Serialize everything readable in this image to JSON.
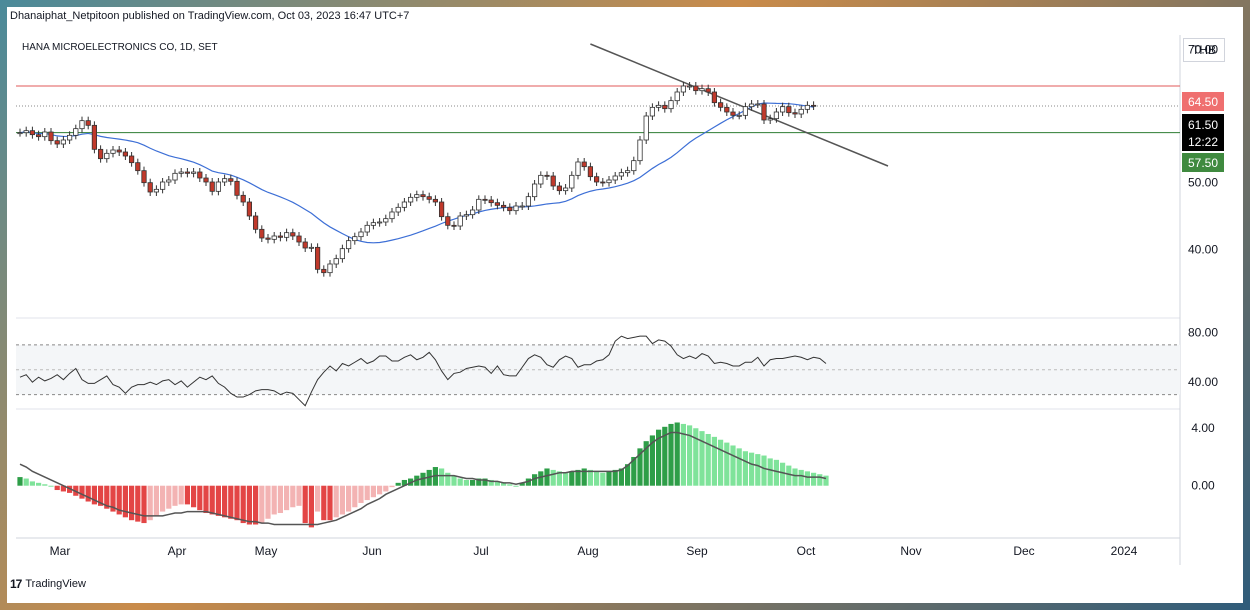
{
  "header": {
    "published": "Dhanaiphat_Netpitoon published on TradingView.com, Oct 03, 2023 16:47 UTC+7",
    "symbol": "HANA MICROELECTRONICS CO, 1D, SET"
  },
  "currency": "THB",
  "footer": {
    "brand": "TradingView"
  },
  "colors": {
    "up_candle": "#ffffff",
    "down_candle": "#c0392b",
    "ma_line": "#3d6fd6",
    "resistance": "#e05a5a",
    "support": "#2e7d32",
    "trendline": "#555555",
    "rsi_line": "#333333",
    "hist_pos_strong": "#2e9e48",
    "hist_pos_weak": "#7fe39a",
    "hist_neg_strong": "#e34545",
    "hist_neg_weak": "#f3b3b3",
    "signal_line": "#555555"
  },
  "price_labels": {
    "resistance": "64.50",
    "last": "61.50",
    "countdown": "12:22",
    "support": "57.50"
  },
  "chart_data": [
    {
      "type": "candlestick",
      "title": "HANA MICROELECTRONICS CO, 1D, SET",
      "y_ticks": [
        "70.00",
        "50.00",
        "40.00"
      ],
      "ylim": [
        30,
        72
      ],
      "x_ticks": [
        "Mar",
        "Apr",
        "May",
        "Jun",
        "Jul",
        "Aug",
        "Sep",
        "Oct",
        "Nov",
        "Dec",
        "2024"
      ],
      "horizontal_levels": [
        64.5,
        57.5
      ],
      "close": [
        57.5,
        57.8,
        57.2,
        56.9,
        57.6,
        56.3,
        55.8,
        56.4,
        57.1,
        58.1,
        59.3,
        58.6,
        55.0,
        53.6,
        54.4,
        54.9,
        54.6,
        54.0,
        53.0,
        51.8,
        50.0,
        48.6,
        49.0,
        50.1,
        50.4,
        51.4,
        51.6,
        51.4,
        51.6,
        50.7,
        50.1,
        48.7,
        50.1,
        50.6,
        50.2,
        48.1,
        47.1,
        45.0,
        43.0,
        41.7,
        41.5,
        42.0,
        41.8,
        42.5,
        42.0,
        41.1,
        40.2,
        40.3,
        37.0,
        36.5,
        37.8,
        38.6,
        40.1,
        41.3,
        41.9,
        42.6,
        43.6,
        44.0,
        44.1,
        44.6,
        45.6,
        46.3,
        47.1,
        47.8,
        48.2,
        47.9,
        47.5,
        47.1,
        44.9,
        43.6,
        43.5,
        45.0,
        45.2,
        45.9,
        47.5,
        47.4,
        47.0,
        46.6,
        46.3,
        45.8,
        46.5,
        46.5,
        47.9,
        49.8,
        51.1,
        51.0,
        49.5,
        48.8,
        49.2,
        51.1,
        53.1,
        52.4,
        50.9,
        50.1,
        50.0,
        50.4,
        51.0,
        51.5,
        51.8,
        53.3,
        56.4,
        60.0,
        61.3,
        61.6,
        61.1,
        62.3,
        63.6,
        64.5,
        64.5,
        63.8,
        64.1,
        63.6,
        62.0,
        61.3,
        60.6,
        60.1,
        60.1,
        61.4,
        61.8,
        61.8,
        59.4,
        59.6,
        60.6,
        61.4,
        60.5,
        60.3,
        61.0,
        61.6,
        61.5
      ]
    },
    {
      "type": "line",
      "title": "",
      "y_ticks": [
        "80.00",
        "40.00"
      ],
      "ylim": [
        20,
        90
      ],
      "bands": [
        70,
        30
      ],
      "values": [
        44,
        46,
        40,
        44,
        41,
        43,
        46,
        42,
        47,
        51,
        42,
        39,
        39,
        42,
        45,
        38,
        36,
        31,
        36,
        38,
        38,
        40,
        38,
        41,
        42,
        38,
        41,
        36,
        40,
        44,
        42,
        45,
        39,
        36,
        31,
        28,
        28,
        30,
        33,
        34,
        34,
        33,
        30,
        32,
        31,
        26,
        21,
        32,
        42,
        48,
        53,
        49,
        55,
        53,
        56,
        59,
        55,
        57,
        61,
        61,
        57,
        57,
        60,
        62,
        58,
        60,
        64,
        58,
        49,
        42,
        47,
        48,
        51,
        52,
        53,
        52,
        47,
        53,
        46,
        45,
        45,
        52,
        59,
        62,
        60,
        54,
        52,
        58,
        61,
        59,
        52,
        54,
        54,
        57,
        58,
        62,
        73,
        77,
        75,
        76,
        77,
        77,
        71,
        74,
        73,
        69,
        62,
        59,
        61,
        59,
        63,
        61,
        55,
        56,
        55,
        53,
        53,
        56,
        56,
        60,
        53,
        58,
        59,
        59,
        60,
        61,
        60,
        58,
        60,
        59,
        55
      ]
    },
    {
      "type": "bar",
      "title": "",
      "y_ticks": [
        "4.00",
        "0.00"
      ],
      "ylim": [
        -3.5,
        5.2
      ],
      "histogram": [
        0.6,
        0.5,
        0.3,
        0.2,
        0.1,
        0.0,
        -0.3,
        -0.4,
        -0.5,
        -0.7,
        -0.9,
        -1.1,
        -1.3,
        -1.4,
        -1.6,
        -1.8,
        -2.0,
        -2.2,
        -2.4,
        -2.5,
        -2.6,
        -2.4,
        -2.1,
        -1.8,
        -1.6,
        -1.4,
        -1.3,
        -1.3,
        -1.5,
        -1.7,
        -1.9,
        -2.0,
        -2.1,
        -2.2,
        -2.3,
        -2.4,
        -2.6,
        -2.7,
        -2.7,
        -2.6,
        -2.3,
        -2.0,
        -1.9,
        -1.7,
        -1.5,
        -1.4,
        -2.6,
        -2.9,
        -1.8,
        -2.4,
        -2.4,
        -2.2,
        -2.0,
        -1.8,
        -1.5,
        -1.2,
        -1.0,
        -0.8,
        -0.6,
        -0.4,
        -0.1,
        0.2,
        0.4,
        0.5,
        0.7,
        0.9,
        1.1,
        1.3,
        1.2,
        0.9,
        0.7,
        0.5,
        0.4,
        0.4,
        0.5,
        0.5,
        0.4,
        0.3,
        0.2,
        0.1,
        0.0,
        0.2,
        0.5,
        0.8,
        1.0,
        1.2,
        1.1,
        1.0,
        0.9,
        1.0,
        1.1,
        1.2,
        1.1,
        1.0,
        0.9,
        1.0,
        1.1,
        1.2,
        1.5,
        2.0,
        2.6,
        3.1,
        3.5,
        3.9,
        4.1,
        4.3,
        4.4,
        4.3,
        4.2,
        4.0,
        3.8,
        3.6,
        3.4,
        3.2,
        3.0,
        2.8,
        2.6,
        2.4,
        2.3,
        2.2,
        2.1,
        1.9,
        1.8,
        1.6,
        1.4,
        1.2,
        1.1,
        1.0,
        0.9,
        0.8,
        0.7
      ],
      "signal": [
        1.5,
        1.3,
        1.0,
        0.8,
        0.6,
        0.4,
        0.2,
        0.0,
        -0.2,
        -0.4,
        -0.6,
        -0.8,
        -1.0,
        -1.2,
        -1.4,
        -1.5,
        -1.7,
        -1.8,
        -1.9,
        -2.0,
        -2.1,
        -2.1,
        -2.1,
        -2.1,
        -2.0,
        -1.9,
        -1.9,
        -1.8,
        -1.8,
        -1.8,
        -1.8,
        -1.9,
        -2.0,
        -2.1,
        -2.2,
        -2.3,
        -2.4,
        -2.5,
        -2.5,
        -2.6,
        -2.6,
        -2.7,
        -2.7,
        -2.7,
        -2.7,
        -2.7,
        -2.7,
        -2.7,
        -2.7,
        -2.6,
        -2.5,
        -2.4,
        -2.2,
        -2.0,
        -1.8,
        -1.6,
        -1.3,
        -1.1,
        -0.9,
        -0.6,
        -0.4,
        -0.2,
        0.0,
        0.2,
        0.4,
        0.5,
        0.6,
        0.7,
        0.7,
        0.7,
        0.7,
        0.6,
        0.5,
        0.5,
        0.4,
        0.4,
        0.3,
        0.3,
        0.2,
        0.2,
        0.1,
        0.2,
        0.3,
        0.5,
        0.6,
        0.7,
        0.8,
        0.9,
        0.9,
        1.0,
        1.0,
        1.0,
        1.0,
        1.0,
        1.0,
        1.0,
        1.0,
        1.1,
        1.4,
        1.8,
        2.2,
        2.6,
        3.0,
        3.3,
        3.5,
        3.7,
        3.7,
        3.6,
        3.5,
        3.3,
        3.1,
        2.9,
        2.7,
        2.5,
        2.3,
        2.1,
        1.9,
        1.7,
        1.5,
        1.4,
        1.2,
        1.1,
        1.0,
        0.9,
        0.8,
        0.7,
        0.7,
        0.6,
        0.6,
        0.6,
        0.5
      ]
    }
  ]
}
